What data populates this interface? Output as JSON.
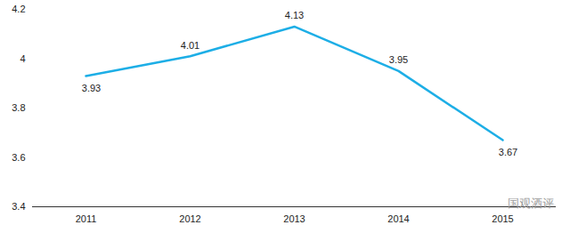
{
  "chart_data": {
    "type": "line",
    "categories": [
      "2011",
      "2012",
      "2013",
      "2014",
      "2015"
    ],
    "values": [
      3.93,
      4.01,
      4.13,
      3.95,
      3.67
    ],
    "color": "#1daee6",
    "ylim": [
      3.4,
      4.2
    ],
    "yticks": [
      3.4,
      3.6,
      3.8,
      4,
      4.2
    ],
    "grid": false,
    "data_labels": true,
    "annotations": [
      "国观酒评"
    ]
  }
}
